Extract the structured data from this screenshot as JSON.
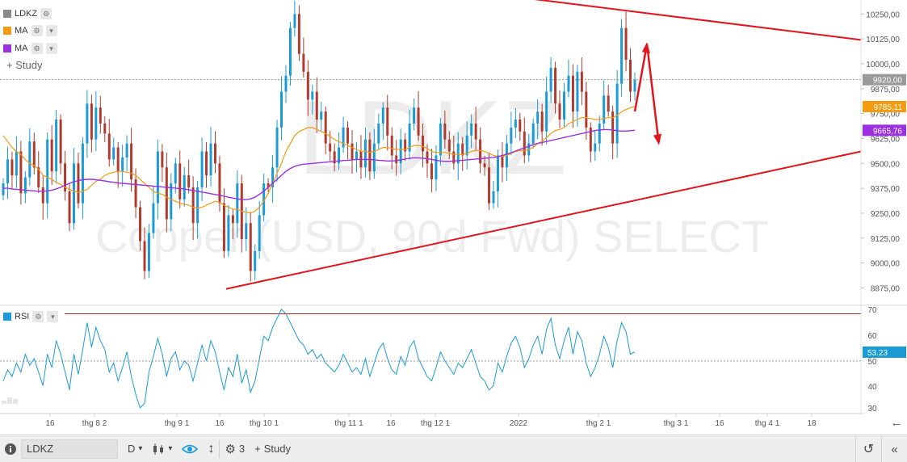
{
  "legend": {
    "symbol": "LDKZ",
    "symbol_color": "#8a8a8a",
    "ma1_label": "MA",
    "ma1_color": "#f39c12",
    "ma2_label": "MA",
    "ma2_color": "#9b30e0",
    "study_button": "Study",
    "rsi_label": "RSI",
    "rsi_color": "#1a9bd6"
  },
  "watermark": {
    "symbol": "LDKZ",
    "description": "Copper (USD, 90d Fwd) SELECT"
  },
  "price_axis": {
    "ticks": [
      "10250,00",
      "10125,00",
      "10000,00",
      "9875,00",
      "9750,00",
      "9625,00",
      "9500,00",
      "9375,00",
      "9250,00",
      "9125,00",
      "9000,00",
      "8875,00"
    ],
    "last_price_tag": "9920,00",
    "ma1_tag": "9785,11",
    "ma2_tag": "9665,76"
  },
  "rsi_axis": {
    "ticks": [
      "70",
      "60",
      "50",
      "40",
      "30"
    ],
    "value_tag": "53.23"
  },
  "time_axis": {
    "labels": [
      "16",
      "thg 8 2",
      "thg 9 1",
      "16",
      "thg 10 1",
      "thg 11 1",
      "16",
      "thg 12 1",
      "2022",
      "thg 2 1",
      "thg 3 1",
      "16",
      "thg 4 1",
      "18"
    ]
  },
  "toolbar": {
    "info_icon": "info-icon",
    "symbol_value": "LDKZ",
    "interval": "D",
    "chart_type_icon": "candlestick-icon",
    "visibility_icon": "eye-icon",
    "scale_icon": "vertical-resize-icon",
    "settings_count": "3",
    "study_label": "Study",
    "reset_icon": "undo-icon",
    "collapse_icon": "double-chevron-left-icon",
    "scroll_icon": "arrow-left-icon"
  },
  "colors": {
    "up_candle": "#1a9bd6",
    "down_candle": "#b03a2e",
    "trendline": "#e3141b",
    "rsi_line": "#1a9bd6",
    "overbought_line": "#a52a2a",
    "ma1": "#f39c12",
    "ma2": "#9b30e0"
  },
  "chart_data": {
    "type": "candlestick",
    "symbol": "LDKZ",
    "price_range": [
      8800,
      10320
    ],
    "close_series": [
      9400,
      9520,
      9440,
      9560,
      9350,
      9430,
      9610,
      9480,
      9380,
      9300,
      9620,
      9460,
      9720,
      9500,
      9360,
      9200,
      9500,
      9300,
      9600,
      9800,
      9620,
      9780,
      9700,
      9650,
      9520,
      9580,
      9460,
      9530,
      9600,
      9420,
      9280,
      9110,
      8960,
      9150,
      9300,
      9560,
      9480,
      9220,
      9400,
      9500,
      9320,
      9440,
      9380,
      9200,
      9380,
      9560,
      9440,
      9600,
      9500,
      9300,
      9060,
      9240,
      9200,
      9400,
      9120,
      9200,
      8960,
      9060,
      9240,
      9400,
      9380,
      9480,
      9680,
      9860,
      9940,
      10180,
      10250,
      10050,
      9960,
      9820,
      9860,
      9720,
      9760,
      9600,
      9560,
      9500,
      9580,
      9680,
      9600,
      9520,
      9560,
      9480,
      9620,
      9460,
      9600,
      9700,
      9780,
      9640,
      9540,
      9500,
      9620,
      9560,
      9700,
      9780,
      9640,
      9560,
      9500,
      9420,
      9540,
      9700,
      9620,
      9560,
      9500,
      9600,
      9540,
      9640,
      9700,
      9620,
      9500,
      9480,
      9300,
      9360,
      9540,
      9480,
      9600,
      9680,
      9720,
      9660,
      9540,
      9600,
      9700,
      9760,
      9660,
      9860,
      9980,
      9800,
      9720,
      9860,
      9940,
      9760,
      9960,
      9860,
      9680,
      9560,
      9600,
      9700,
      9840,
      9760,
      9600,
      9900,
      10180,
      10020,
      9860,
      9920
    ],
    "ma1_series": [
      9640,
      9610,
      9580,
      9560,
      9545,
      9520,
      9500,
      9490,
      9470,
      9440,
      9430,
      9420,
      9405,
      9395,
      9380,
      9370,
      9360,
      9355,
      9360,
      9370,
      9390,
      9410,
      9420,
      9440,
      9450,
      9455,
      9460,
      9460,
      9455,
      9450,
      9440,
      9420,
      9400,
      9380,
      9360,
      9350,
      9345,
      9330,
      9320,
      9310,
      9300,
      9295,
      9290,
      9280,
      9275,
      9280,
      9290,
      9300,
      9310,
      9305,
      9290,
      9280,
      9270,
      9270,
      9260,
      9255,
      9250,
      9260,
      9280,
      9310,
      9350,
      9400,
      9450,
      9500,
      9560,
      9600,
      9640,
      9660,
      9670,
      9680,
      9680,
      9670,
      9660,
      9650,
      9635,
      9620,
      9610,
      9600,
      9590,
      9580,
      9570,
      9560,
      9560,
      9555,
      9560,
      9570,
      9580,
      9580,
      9575,
      9570,
      9570,
      9570,
      9580,
      9590,
      9590,
      9585,
      9575,
      9560,
      9555,
      9555,
      9555,
      9550,
      9545,
      9545,
      9545,
      9550,
      9560,
      9565,
      9565,
      9560,
      9550,
      9540,
      9535,
      9535,
      9540,
      9550,
      9560,
      9565,
      9565,
      9570,
      9580,
      9600,
      9610,
      9630,
      9650,
      9665,
      9670,
      9680,
      9700,
      9710,
      9720,
      9730,
      9730,
      9725,
      9720,
      9720,
      9725,
      9730,
      9730,
      9740,
      9760,
      9770,
      9780,
      9785
    ],
    "ma2_series": [
      9375,
      9375,
      9372,
      9370,
      9368,
      9366,
      9364,
      9362,
      9360,
      9360,
      9362,
      9366,
      9372,
      9380,
      9390,
      9400,
      9408,
      9414,
      9418,
      9420,
      9420,
      9418,
      9415,
      9412,
      9408,
      9405,
      9402,
      9400,
      9398,
      9396,
      9394,
      9392,
      9390,
      9388,
      9386,
      9384,
      9382,
      9380,
      9378,
      9376,
      9374,
      9372,
      9368,
      9364,
      9360,
      9356,
      9352,
      9348,
      9344,
      9340,
      9335,
      9330,
      9326,
      9322,
      9318,
      9318,
      9322,
      9330,
      9345,
      9360,
      9380,
      9400,
      9420,
      9440,
      9460,
      9475,
      9485,
      9492,
      9496,
      9498,
      9500,
      9502,
      9504,
      9506,
      9508,
      9510,
      9512,
      9514,
      9516,
      9518,
      9520,
      9520,
      9520,
      9520,
      9518,
      9516,
      9514,
      9512,
      9512,
      9514,
      9518,
      9522,
      9526,
      9528,
      9528,
      9526,
      9524,
      9520,
      9516,
      9512,
      9510,
      9510,
      9512,
      9514,
      9516,
      9518,
      9520,
      9522,
      9524,
      9526,
      9528,
      9530,
      9534,
      9540,
      9546,
      9554,
      9562,
      9570,
      9578,
      9586,
      9594,
      9600,
      9605,
      9610,
      9615,
      9620,
      9625,
      9630,
      9635,
      9640,
      9645,
      9650,
      9655,
      9660,
      9665,
      9668,
      9670,
      9670,
      9668,
      9664,
      9662,
      9662,
      9664,
      9666
    ],
    "rsi_series": [
      40,
      45,
      42,
      48,
      44,
      52,
      47,
      50,
      44,
      38,
      52,
      46,
      58,
      52,
      44,
      36,
      52,
      43,
      54,
      66,
      55,
      64,
      58,
      54,
      44,
      48,
      40,
      46,
      53,
      42,
      34,
      28,
      30,
      44,
      51,
      59,
      52,
      42,
      50,
      53,
      45,
      49,
      47,
      40,
      48,
      56,
      49,
      58,
      53,
      44,
      36,
      46,
      42,
      52,
      39,
      45,
      35,
      40,
      50,
      60,
      58,
      64,
      68,
      72,
      70,
      66,
      62,
      58,
      56,
      52,
      54,
      50,
      52,
      48,
      46,
      44,
      47,
      52,
      48,
      44,
      46,
      43,
      50,
      42,
      48,
      54,
      57,
      50,
      45,
      43,
      51,
      47,
      55,
      58,
      50,
      46,
      42,
      40,
      46,
      53,
      49,
      46,
      43,
      48,
      46,
      50,
      54,
      48,
      42,
      40,
      36,
      38,
      48,
      44,
      51,
      57,
      60,
      55,
      46,
      50,
      56,
      60,
      52,
      63,
      68,
      56,
      50,
      58,
      64,
      52,
      62,
      58,
      48,
      42,
      46,
      52,
      60,
      55,
      46,
      58,
      66,
      62,
      52,
      53
    ],
    "rsi_last": 53.23,
    "rsi_range": [
      28,
      72
    ],
    "rsi_levels": [
      70,
      50
    ],
    "x_labels": [
      "16",
      "thg 8 2",
      "thg 9 1",
      "16",
      "thg 10 1",
      "thg 11 1",
      "16",
      "thg 12 1",
      "2022",
      "thg 2 1",
      "thg 3 1",
      "16",
      "thg 4 1",
      "18"
    ],
    "trendlines": [
      {
        "name": "upper",
        "start": [
          0,
          10340
        ],
        "end": [
          1,
          10120
        ]
      },
      {
        "name": "lower",
        "start": [
          0,
          8870
        ],
        "end": [
          1,
          9560
        ]
      }
    ],
    "forecast_arrows": [
      {
        "from_price": 9760,
        "to_price": 10100
      },
      {
        "from_price": 10100,
        "to_price": 9600
      }
    ]
  }
}
